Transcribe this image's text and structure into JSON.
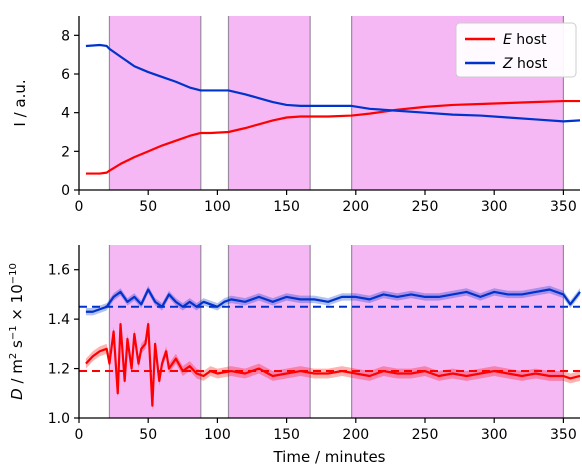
{
  "chart_data": [
    {
      "type": "line",
      "xlabel": "",
      "ylabel": "I / a.u.",
      "xlim": [
        0,
        362
      ],
      "ylim": [
        0,
        9
      ],
      "xticks": [
        0,
        50,
        100,
        150,
        200,
        250,
        300,
        350
      ],
      "yticks": [
        0,
        2,
        4,
        6,
        8
      ],
      "shaded_intervals": [
        [
          22,
          88
        ],
        [
          108,
          167
        ],
        [
          197,
          350
        ]
      ],
      "legend": {
        "placement": "top-right",
        "entries": [
          {
            "label_italic": "E",
            "label_rest": " host",
            "color": "#ff0000"
          },
          {
            "label_italic": "Z",
            "label_rest": " host",
            "color": "#0033cc"
          }
        ]
      },
      "series": [
        {
          "name": "E host",
          "color": "#ff0000",
          "x": [
            5,
            15,
            20,
            22,
            30,
            40,
            50,
            60,
            70,
            80,
            88,
            95,
            108,
            120,
            130,
            140,
            150,
            160,
            167,
            180,
            197,
            210,
            230,
            250,
            270,
            290,
            310,
            330,
            350,
            362
          ],
          "y": [
            0.85,
            0.85,
            0.9,
            1.0,
            1.35,
            1.7,
            2.0,
            2.3,
            2.55,
            2.8,
            2.95,
            2.95,
            3.0,
            3.2,
            3.4,
            3.6,
            3.75,
            3.8,
            3.8,
            3.8,
            3.85,
            3.95,
            4.15,
            4.3,
            4.4,
            4.45,
            4.5,
            4.55,
            4.6,
            4.6
          ]
        },
        {
          "name": "Z host",
          "color": "#0033cc",
          "x": [
            5,
            15,
            20,
            22,
            30,
            40,
            50,
            60,
            70,
            80,
            88,
            95,
            108,
            120,
            130,
            140,
            150,
            160,
            167,
            180,
            197,
            210,
            230,
            250,
            270,
            290,
            310,
            330,
            350,
            362
          ],
          "y": [
            7.45,
            7.5,
            7.45,
            7.3,
            6.9,
            6.4,
            6.1,
            5.85,
            5.6,
            5.3,
            5.15,
            5.15,
            5.15,
            4.95,
            4.75,
            4.55,
            4.4,
            4.35,
            4.35,
            4.35,
            4.35,
            4.2,
            4.1,
            4.0,
            3.9,
            3.85,
            3.75,
            3.65,
            3.55,
            3.6
          ]
        }
      ]
    },
    {
      "type": "line",
      "xlabel": "Time / minutes",
      "ylabel_parts": {
        "var": "D",
        "rest": " / m",
        "sup1": "2",
        "mid": " s",
        "sup2": "−1",
        "times": " × 10",
        "sup3": "−10"
      },
      "xlim": [
        0,
        362
      ],
      "ylim": [
        1.0,
        1.7
      ],
      "xticks": [
        0,
        50,
        100,
        150,
        200,
        250,
        300,
        350
      ],
      "yticks": [
        1.0,
        1.2,
        1.4,
        1.6
      ],
      "yticklabels": [
        "1.0",
        "1.2",
        "1.4",
        "1.6"
      ],
      "shaded_intervals": [
        [
          22,
          88
        ],
        [
          108,
          167
        ],
        [
          197,
          350
        ]
      ],
      "reference_lines": [
        {
          "y": 1.45,
          "color": "#0033cc",
          "style": "dashed"
        },
        {
          "y": 1.19,
          "color": "#ff0000",
          "style": "dashed"
        }
      ],
      "series": [
        {
          "name": "Z host",
          "color": "#0033cc",
          "band": 0.015,
          "x": [
            5,
            10,
            15,
            20,
            25,
            30,
            35,
            40,
            45,
            50,
            55,
            60,
            65,
            70,
            75,
            80,
            85,
            90,
            95,
            100,
            105,
            110,
            120,
            130,
            140,
            150,
            160,
            170,
            180,
            190,
            200,
            210,
            220,
            230,
            240,
            250,
            260,
            270,
            280,
            290,
            300,
            310,
            320,
            330,
            340,
            350,
            355,
            362
          ],
          "y": [
            1.43,
            1.43,
            1.44,
            1.45,
            1.49,
            1.51,
            1.47,
            1.49,
            1.46,
            1.52,
            1.47,
            1.45,
            1.5,
            1.47,
            1.45,
            1.47,
            1.45,
            1.47,
            1.46,
            1.45,
            1.47,
            1.48,
            1.47,
            1.49,
            1.47,
            1.49,
            1.48,
            1.48,
            1.47,
            1.49,
            1.49,
            1.48,
            1.5,
            1.49,
            1.5,
            1.49,
            1.49,
            1.5,
            1.51,
            1.49,
            1.51,
            1.5,
            1.5,
            1.51,
            1.52,
            1.5,
            1.46,
            1.51
          ]
        },
        {
          "name": "E host",
          "color": "#ff0000",
          "band": 0.02,
          "x": [
            5,
            10,
            15,
            20,
            22,
            25,
            28,
            30,
            33,
            35,
            38,
            40,
            43,
            45,
            48,
            50,
            53,
            55,
            58,
            60,
            63,
            65,
            70,
            75,
            80,
            85,
            90,
            95,
            100,
            110,
            120,
            130,
            140,
            150,
            160,
            170,
            180,
            190,
            200,
            210,
            220,
            230,
            240,
            250,
            260,
            270,
            280,
            290,
            300,
            310,
            320,
            330,
            340,
            350,
            355,
            362
          ],
          "y": [
            1.22,
            1.25,
            1.27,
            1.28,
            1.22,
            1.35,
            1.1,
            1.38,
            1.15,
            1.32,
            1.2,
            1.34,
            1.22,
            1.28,
            1.3,
            1.38,
            1.05,
            1.3,
            1.15,
            1.22,
            1.27,
            1.2,
            1.24,
            1.19,
            1.21,
            1.18,
            1.17,
            1.19,
            1.18,
            1.19,
            1.18,
            1.2,
            1.17,
            1.18,
            1.19,
            1.18,
            1.18,
            1.19,
            1.18,
            1.17,
            1.19,
            1.18,
            1.18,
            1.19,
            1.17,
            1.18,
            1.17,
            1.18,
            1.19,
            1.18,
            1.17,
            1.18,
            1.17,
            1.17,
            1.16,
            1.17
          ]
        }
      ]
    }
  ]
}
